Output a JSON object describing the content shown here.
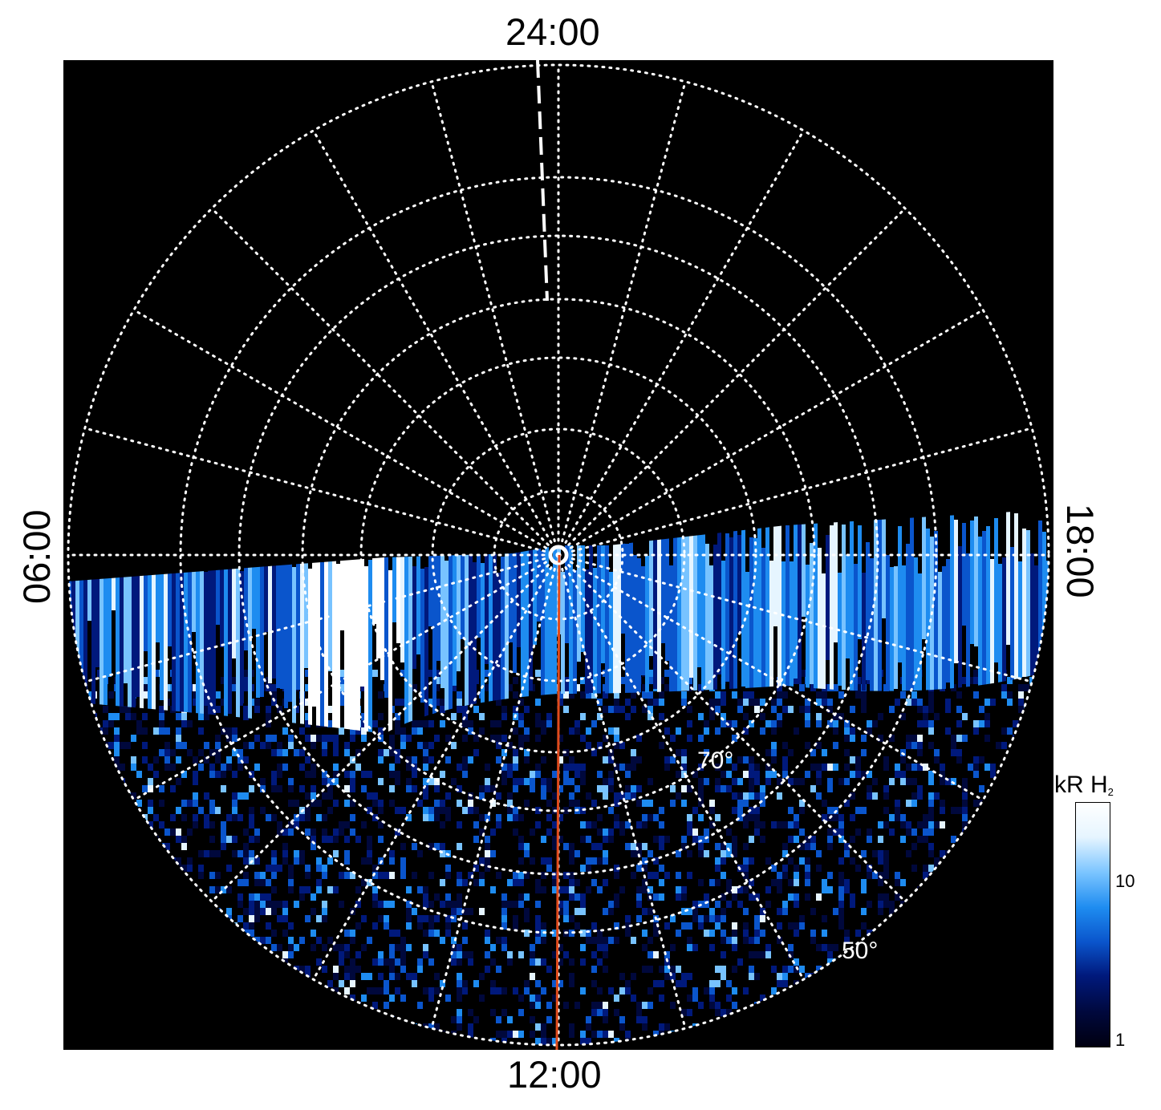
{
  "image": {
    "local_time_labels": {
      "top": "24:00",
      "bottom": "12:00",
      "left": "06:00",
      "right": "18:00"
    },
    "latitude_labels": [
      {
        "text": "70°",
        "value": 70
      },
      {
        "text": "50°",
        "value": 50
      }
    ],
    "colorbar": {
      "title": "kR H",
      "title_subscript": "2",
      "tick_labels": [
        {
          "text": "10",
          "value": 10
        },
        {
          "text": "1",
          "value": 1
        }
      ],
      "min": 1,
      "max": 30,
      "scale": "log"
    },
    "colors": {
      "background": "#000000",
      "grid": "#ffffff",
      "meridian_line": "#e04a1c",
      "colormap": [
        "#000010",
        "#00083c",
        "#00197c",
        "#0a55cc",
        "#1e8cf0",
        "#78c3ff",
        "#e6f5ff",
        "#ffffff"
      ]
    }
  }
}
